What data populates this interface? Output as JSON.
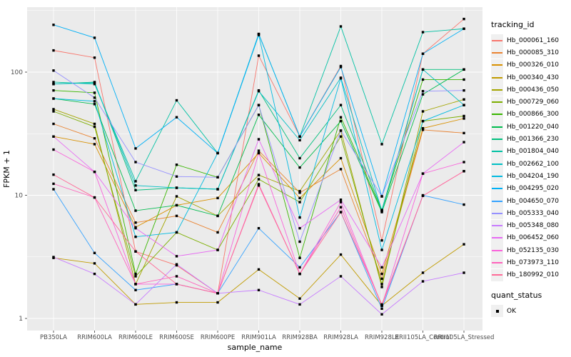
{
  "chart_data": {
    "type": "line",
    "title": "",
    "xlabel": "sample_name",
    "ylabel": "FPKM + 1",
    "y_scale": "log10",
    "ylim": [
      1,
      320
    ],
    "y_ticks": [
      1,
      10,
      100
    ],
    "y_tick_labels": [
      "1",
      "10",
      "100"
    ],
    "y_minor_ticks": [
      3.162,
      31.62,
      316.2
    ],
    "grid": true,
    "legend_position": "right",
    "panel_bg": "#EBEBEB",
    "grid_color": "#FFFFFF",
    "point_marker": "black-square",
    "categories": [
      "PB350LA",
      "RRIM600LA",
      "RRIM600LE",
      "RRIM600SE",
      "RRIM600PE",
      "RRIM901LA",
      "RRIM928BA",
      "RRIM928LA",
      "RRIM928LE",
      "RRII105LA_Control",
      "RRII105LA_Stressed"
    ],
    "series": [
      {
        "name": "Hb_000061_160",
        "color": "#F8766D",
        "values": [
          150,
          131,
          3.5,
          2.7,
          1.6,
          136,
          30,
          112,
          4.3,
          141,
          270
        ]
      },
      {
        "name": "Hb_000085_310",
        "color": "#EA8331",
        "values": [
          38,
          29,
          6.0,
          6.8,
          5.0,
          23,
          10.5,
          16.3,
          2.1,
          34,
          32
        ]
      },
      {
        "name": "Hb_000326_010",
        "color": "#D89000",
        "values": [
          30,
          26,
          5.5,
          8.3,
          9.5,
          22,
          9.5,
          20,
          2.3,
          35,
          42
        ]
      },
      {
        "name": "Hb_000340_430",
        "color": "#C09B00",
        "values": [
          3.1,
          2.8,
          1.3,
          1.35,
          1.35,
          2.5,
          1.45,
          3.3,
          1.27,
          2.35,
          4.0
        ]
      },
      {
        "name": "Hb_000436_050",
        "color": "#A3A500",
        "values": [
          50,
          38,
          1.9,
          9.8,
          6.8,
          14.6,
          10.8,
          33.5,
          1.8,
          48,
          60
        ]
      },
      {
        "name": "Hb_000729_060",
        "color": "#7CAE00",
        "values": [
          48,
          36,
          2.2,
          5.0,
          3.6,
          13.5,
          8.8,
          30,
          1.9,
          40,
          44
        ]
      },
      {
        "name": "Hb_000866_300",
        "color": "#39B600",
        "values": [
          71,
          68,
          2.3,
          17.7,
          14,
          54,
          3.1,
          43,
          7.5,
          87,
          87
        ]
      },
      {
        "name": "Hb_001220_040",
        "color": "#00BB4E",
        "values": [
          61,
          55,
          7.5,
          8.3,
          6.8,
          45,
          16.8,
          40,
          7.3,
          66,
          105
        ]
      },
      {
        "name": "Hb_001366_230",
        "color": "#00BF7D",
        "values": [
          80,
          83,
          11,
          11.5,
          11.2,
          71,
          20,
          54,
          7.6,
          105,
          105
        ]
      },
      {
        "name": "Hb_001804_040",
        "color": "#00C1A3",
        "values": [
          83,
          80,
          13,
          59,
          22,
          204,
          30,
          235,
          26,
          211,
          225
        ]
      },
      {
        "name": "Hb_002662_100",
        "color": "#00BFC4",
        "values": [
          80,
          82,
          12,
          11.5,
          11.2,
          70,
          28,
          90,
          7.5,
          105,
          54
        ]
      },
      {
        "name": "Hb_004204_190",
        "color": "#00BAE0",
        "values": [
          61,
          58,
          4.6,
          5.0,
          22,
          200,
          6.6,
          89,
          3.6,
          40,
          54
        ]
      },
      {
        "name": "Hb_004295_020",
        "color": "#00B0F6",
        "values": [
          242,
          190,
          24,
          43,
          22,
          204,
          30,
          110,
          9.8,
          141,
          225
        ]
      },
      {
        "name": "Hb_004650_070",
        "color": "#35A2FF",
        "values": [
          11.2,
          3.4,
          1.7,
          1.9,
          1.6,
          5.4,
          2.6,
          7.3,
          1.2,
          10,
          8.4
        ]
      },
      {
        "name": "Hb_005333_040",
        "color": "#9590FF",
        "values": [
          103,
          62,
          18.6,
          14.2,
          14,
          54,
          4.2,
          33.5,
          9.8,
          70,
          71
        ]
      },
      {
        "name": "Hb_005348_080",
        "color": "#C77CFF",
        "values": [
          3.15,
          2.3,
          1.3,
          2.75,
          1.6,
          1.7,
          1.3,
          2.2,
          1.08,
          2.0,
          2.35
        ]
      },
      {
        "name": "Hb_006452_060",
        "color": "#E76BF3",
        "values": [
          30,
          15.5,
          5.4,
          3.2,
          3.6,
          28.5,
          5.4,
          9.2,
          2.6,
          15,
          27
        ]
      },
      {
        "name": "Hb_052135_030",
        "color": "#FA62DB",
        "values": [
          23.5,
          15.5,
          1.9,
          1.9,
          1.6,
          22,
          2.3,
          8.8,
          1.27,
          15,
          18.6
        ]
      },
      {
        "name": "Hb_073973_110",
        "color": "#FF62BC",
        "values": [
          12.4,
          9.6,
          1.9,
          2.2,
          1.6,
          12.3,
          2.3,
          8.0,
          1.27,
          9.9,
          15.7
        ]
      },
      {
        "name": "Hb_180992_010",
        "color": "#FF6A98",
        "values": [
          14.7,
          9.6,
          3.5,
          1.9,
          1.6,
          12.0,
          2.3,
          7.3,
          1.3,
          9.9,
          15.7
        ]
      }
    ]
  },
  "axes": {
    "x_title": "sample_name",
    "y_title": "FPKM + 1"
  },
  "legend": {
    "tracking_title": "tracking_id",
    "quant_title": "quant_status",
    "quant_items": [
      {
        "label": "OK",
        "marker": "black-square"
      }
    ]
  }
}
